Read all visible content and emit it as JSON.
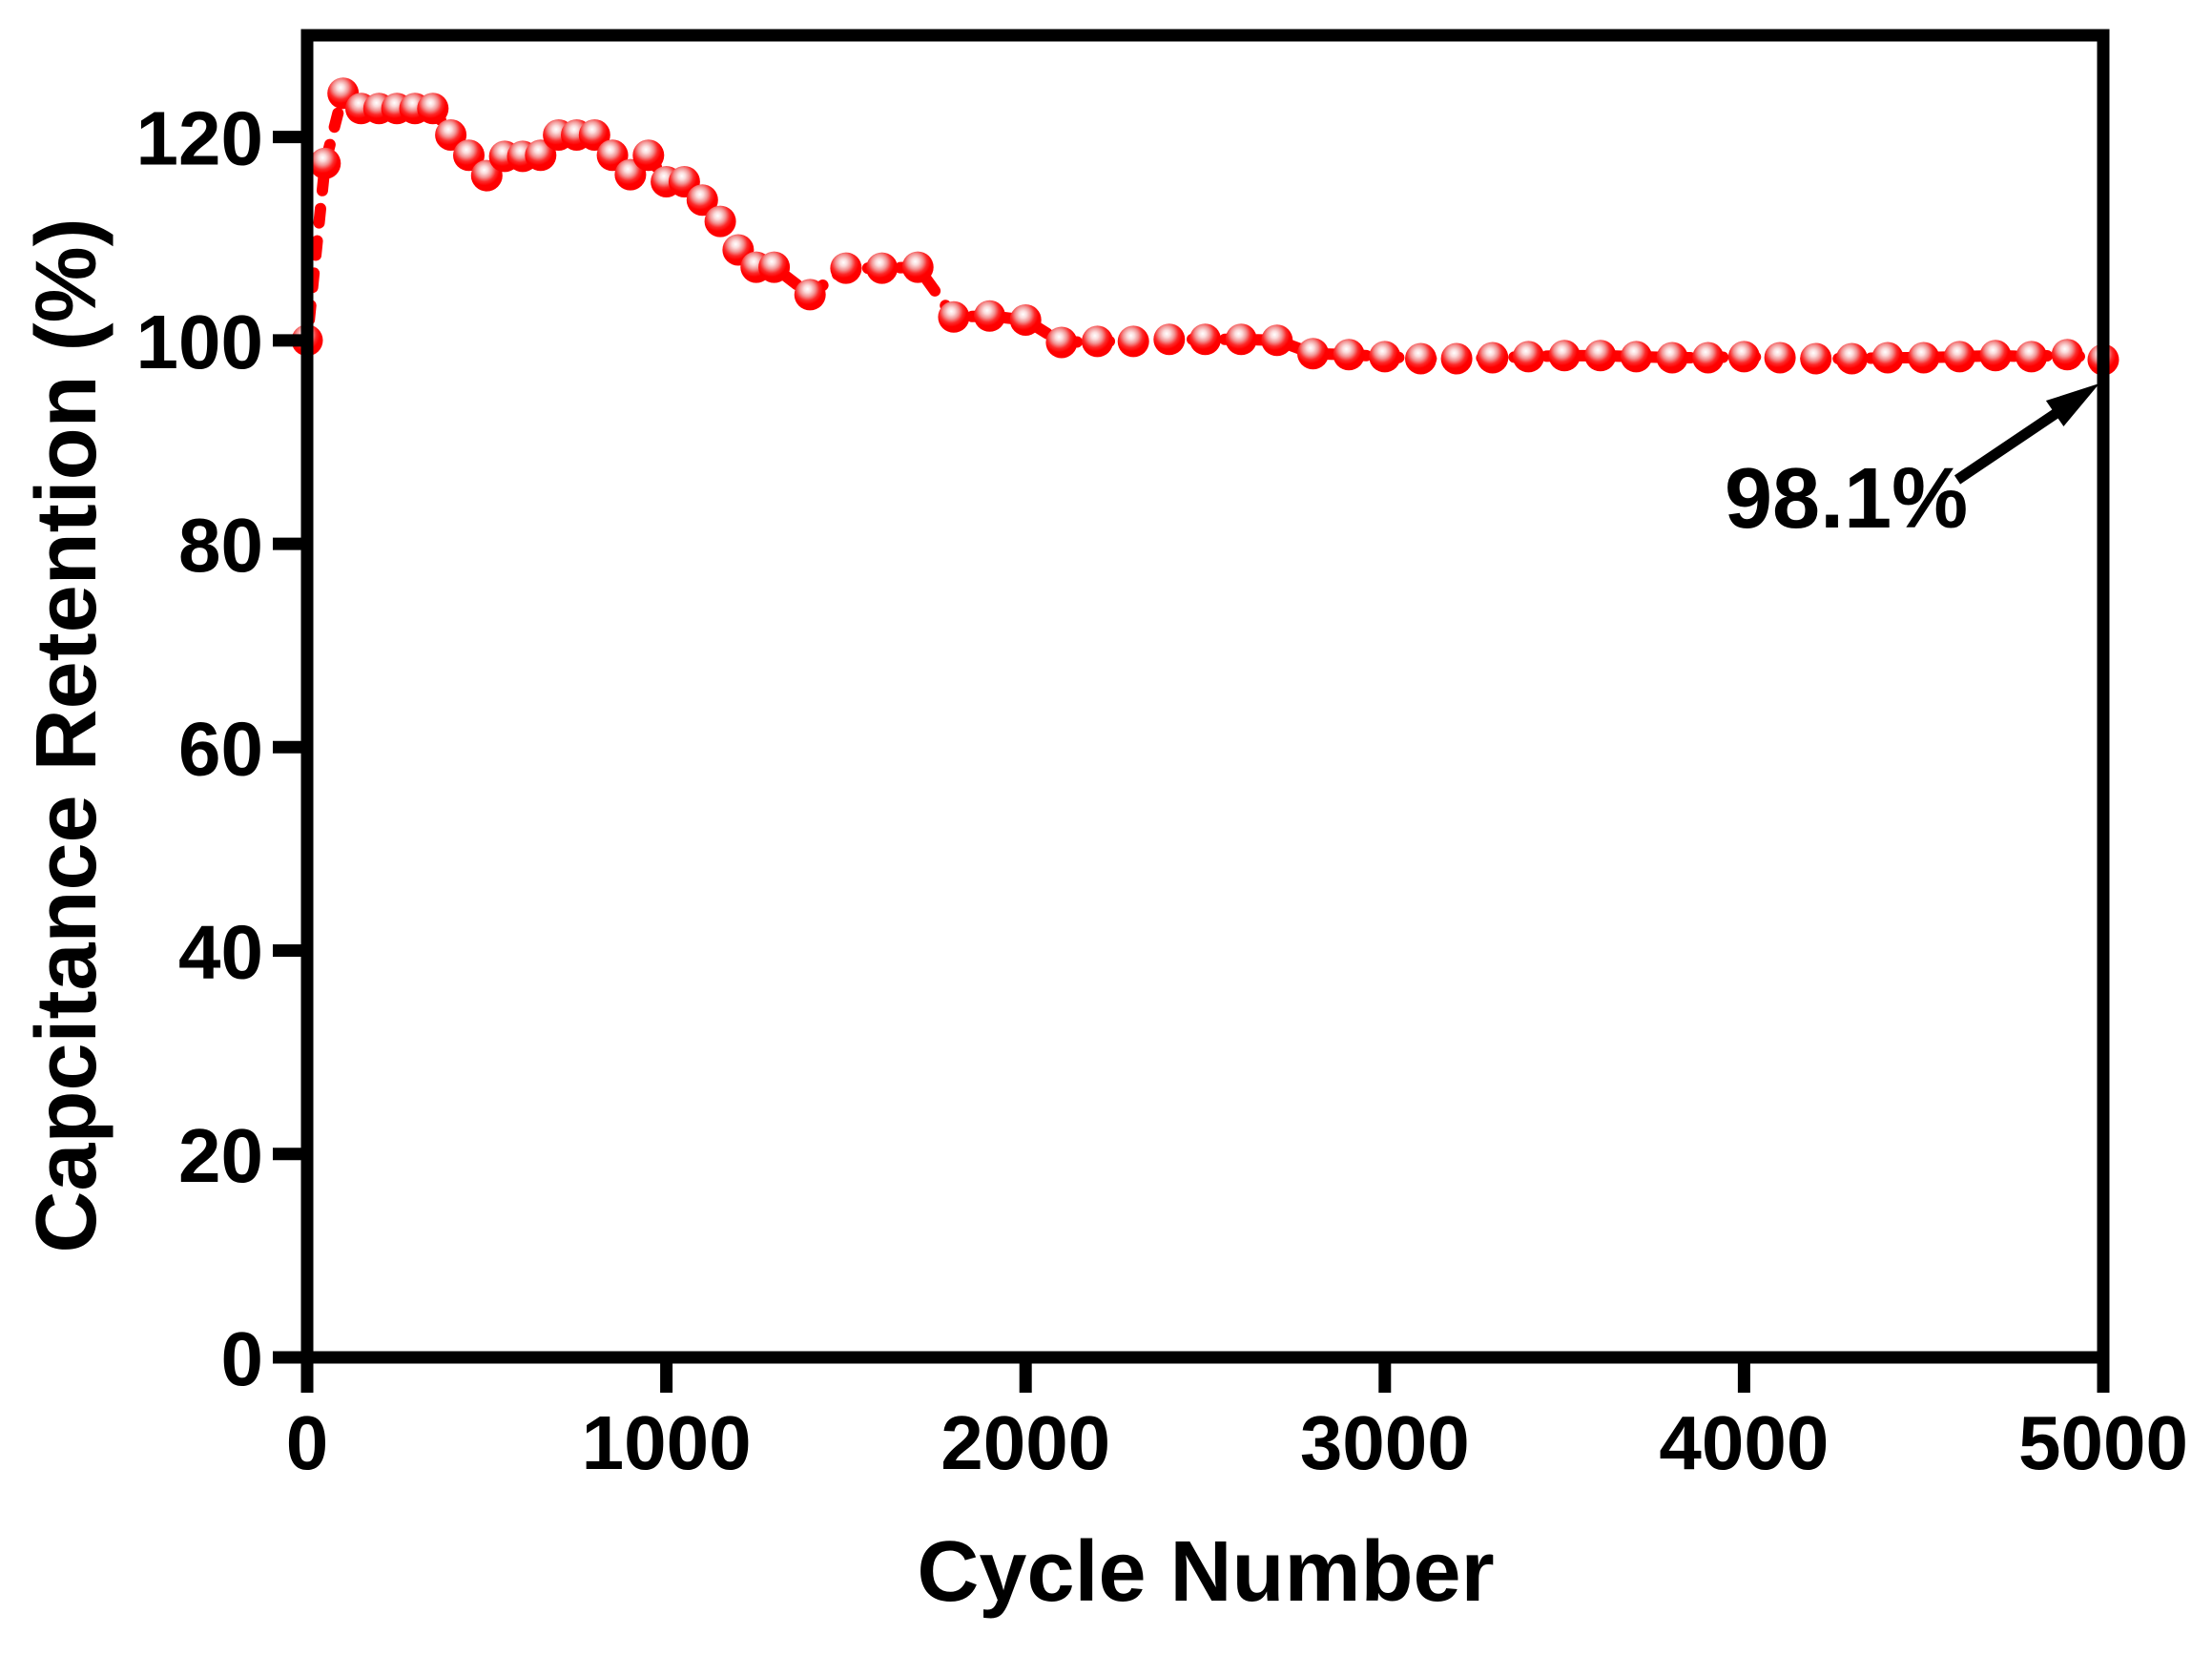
{
  "figure": {
    "background": "#ffffff"
  },
  "chart_data": {
    "type": "scatter",
    "title": "",
    "xlabel": "Cycle Number",
    "ylabel": "Capcitance Retention (%)",
    "xlim": [
      0,
      5000
    ],
    "ylim": [
      0,
      130
    ],
    "xticks": [
      0,
      1000,
      2000,
      3000,
      4000,
      5000
    ],
    "yticks": [
      0,
      20,
      40,
      60,
      80,
      100,
      120
    ],
    "grid": false,
    "legend": false,
    "marker_color": "#ff0000",
    "marker_highlight_color": "#ffffff",
    "line_color": "#ff0000",
    "line_style": "dashed",
    "axis_color": "#000000",
    "line_starts_at_origin": true,
    "series": [
      {
        "name": "capacitance-retention",
        "x": [
          0,
          50,
          100,
          150,
          200,
          250,
          300,
          350,
          400,
          450,
          500,
          550,
          600,
          650,
          700,
          750,
          800,
          850,
          900,
          950,
          1000,
          1050,
          1100,
          1150,
          1200,
          1250,
          1300,
          1400,
          1500,
          1600,
          1700,
          1800,
          1900,
          2000,
          2100,
          2200,
          2300,
          2400,
          2500,
          2600,
          2700,
          2800,
          2900,
          3000,
          3100,
          3200,
          3300,
          3400,
          3500,
          3600,
          3700,
          3800,
          3900,
          4000,
          4100,
          4200,
          4300,
          4400,
          4500,
          4600,
          4700,
          4800,
          4900,
          5000
        ],
        "y": [
          100,
          117.4,
          124.3,
          122.8,
          122.8,
          122.8,
          122.8,
          122.8,
          120.2,
          118.2,
          116.2,
          118.1,
          118.1,
          118.2,
          120.2,
          120.2,
          120.2,
          118.2,
          116.3,
          118.2,
          115.6,
          115.6,
          113.8,
          111.7,
          108.9,
          107.2,
          107.2,
          104.5,
          107.1,
          107.1,
          107.2,
          102.3,
          102.4,
          102.0,
          99.8,
          99.9,
          99.9,
          100.1,
          100.1,
          100.1,
          100.0,
          98.7,
          98.6,
          98.4,
          98.2,
          98.2,
          98.3,
          98.4,
          98.5,
          98.5,
          98.4,
          98.3,
          98.3,
          98.4,
          98.3,
          98.2,
          98.2,
          98.3,
          98.3,
          98.4,
          98.5,
          98.4,
          98.6,
          98.1
        ]
      }
    ],
    "annotation": {
      "text": "98.1%",
      "points_to": {
        "x": 5000,
        "y": 98.1
      }
    }
  }
}
